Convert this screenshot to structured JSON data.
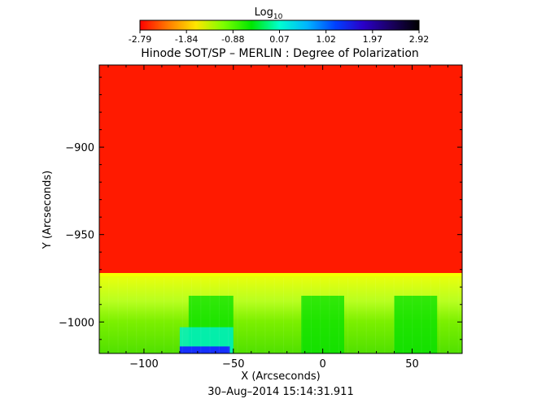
{
  "colorbar": {
    "title_main": "Log",
    "title_sub": "10",
    "ticks": [
      "-2.79",
      "-1.84",
      "-0.88",
      "0.07",
      "1.02",
      "1.97",
      "2.92"
    ],
    "colors": [
      "#ff0000",
      "#ff7a00",
      "#ffe600",
      "#7cff00",
      "#00e600",
      "#00ffd0",
      "#00b4ff",
      "#0040ff",
      "#2a00c8",
      "#1a0060",
      "#000000"
    ]
  },
  "chart_data": {
    "type": "heatmap",
    "title": "Hinode SOT/SP – MERLIN : Degree of Polarization",
    "xlabel": "X (Arcseconds)",
    "ylabel": "Y (Arcseconds)",
    "xlim": [
      -125,
      78
    ],
    "ylim": [
      -1018,
      -853
    ],
    "xticks": [
      -100,
      -50,
      0,
      50
    ],
    "xtick_labels": [
      "−100",
      "−50",
      "0",
      "50"
    ],
    "yticks": [
      -900,
      -950,
      -1000
    ],
    "ytick_labels": [
      "−900",
      "−950",
      "−1000"
    ],
    "limb_y": -972,
    "colors": {
      "off_disk": "#ff1a00",
      "limb_band": "#e6ff00",
      "disk": "#60e600",
      "disk_patch": "#00e000",
      "cyan_patch": "#00f0c8",
      "blue_patch": "#1530ff"
    }
  },
  "timestamp": "30–Aug–2014 15:14:31.911"
}
